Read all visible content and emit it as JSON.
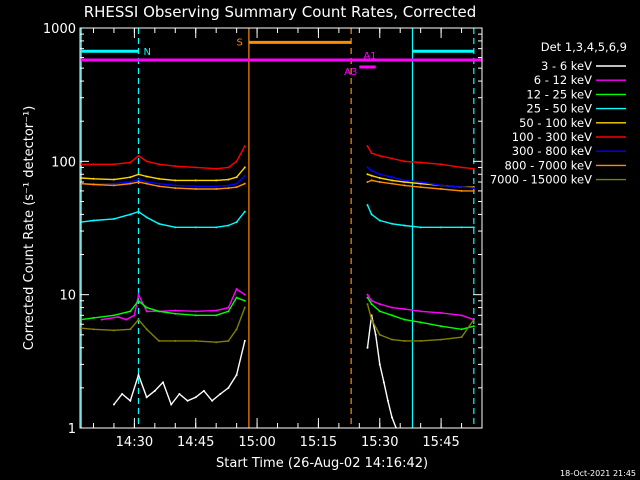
{
  "chart_data": {
    "type": "line",
    "title": "RHESSI Observing Summary Count Rates, Corrected",
    "xlabel": "Start Time (26-Aug-02 14:16:42)",
    "ylabel": "Corrected Count Rate (s⁻¹ detector⁻¹)",
    "y_scale": "log",
    "ylim": [
      1,
      1000
    ],
    "xlim": [
      "14:16:42",
      "15:55:00"
    ],
    "x_ticks": [
      "14:30",
      "14:45",
      "15:00",
      "15:15",
      "15:30",
      "15:45"
    ],
    "y_ticks": [
      "1",
      "10",
      "100",
      "1000"
    ],
    "legend_title": "Det 1,3,4,5,6,9",
    "legend_position": "right",
    "grid": false,
    "timestamp": "18-Oct-2021 21:45",
    "series": [
      {
        "name": "3 - 6 keV",
        "color": "#ffffff",
        "segments": [
          {
            "x": [
              "14:25:00",
              "14:27:00",
              "14:29:00",
              "14:31:00",
              "14:33:00",
              "14:35:00",
              "14:37:00",
              "14:39:00",
              "14:41:00",
              "14:43:00",
              "14:45:00",
              "14:47:00",
              "14:49:00",
              "14:51:00",
              "14:53:00",
              "14:55:00",
              "14:57:00"
            ],
            "y": [
              1.5,
              1.8,
              1.6,
              2.5,
              1.7,
              1.9,
              2.2,
              1.5,
              1.8,
              1.6,
              1.7,
              1.9,
              1.6,
              1.8,
              2.0,
              2.5,
              4.5
            ]
          },
          {
            "x": [
              "15:27:00",
              "15:28:00",
              "15:29:00",
              "15:30:00",
              "15:31:00",
              "15:32:00",
              "15:33:00",
              "15:34:00"
            ],
            "y": [
              4,
              7,
              5,
              3,
              2.2,
              1.6,
              1.2,
              1.0
            ]
          }
        ]
      },
      {
        "name": "6 - 12 keV",
        "color": "#ff00ff",
        "segments": [
          {
            "x": [
              "14:22:00",
              "14:26:00",
              "14:28:00",
              "14:30:00",
              "14:31:00",
              "14:33:00",
              "14:36:00",
              "14:40:00",
              "14:45:00",
              "14:50:00",
              "14:53:00",
              "14:55:00",
              "14:57:00"
            ],
            "y": [
              6.5,
              6.8,
              6.5,
              7,
              10,
              7.5,
              7.5,
              7.6,
              7.5,
              7.6,
              8,
              11,
              10
            ]
          },
          {
            "x": [
              "15:27:00",
              "15:28:00",
              "15:30:00",
              "15:33:00",
              "15:36:00",
              "15:40:00",
              "15:45:00",
              "15:50:00",
              "15:53:00"
            ],
            "y": [
              10,
              9,
              8.5,
              8,
              7.8,
              7.5,
              7.3,
              7,
              6.5
            ]
          }
        ]
      },
      {
        "name": "12 - 25 keV",
        "color": "#00ff00",
        "segments": [
          {
            "x": [
              "14:17:00",
              "14:20:00",
              "14:25:00",
              "14:29:00",
              "14:31:00",
              "14:33:00",
              "14:36:00",
              "14:40:00",
              "14:45:00",
              "14:50:00",
              "14:53:00",
              "14:55:00",
              "14:57:00"
            ],
            "y": [
              6.5,
              6.7,
              7,
              7.5,
              9,
              8,
              7.5,
              7.2,
              7,
              7,
              7.5,
              9.5,
              9
            ]
          },
          {
            "x": [
              "15:27:00",
              "15:28:00",
              "15:30:00",
              "15:33:00",
              "15:36:00",
              "15:40:00",
              "15:45:00",
              "15:50:00",
              "15:53:00"
            ],
            "y": [
              9.5,
              8.5,
              7.5,
              7,
              6.5,
              6.2,
              5.8,
              5.5,
              5.8
            ]
          }
        ]
      },
      {
        "name": "25 - 50 keV",
        "color": "#00ffff",
        "segments": [
          {
            "x": [
              "14:17:00",
              "14:20:00",
              "14:25:00",
              "14:29:00",
              "14:31:00",
              "14:33:00",
              "14:36:00",
              "14:40:00",
              "14:45:00",
              "14:50:00",
              "14:53:00",
              "14:55:00",
              "14:57:00"
            ],
            "y": [
              35,
              36,
              37,
              40,
              42,
              38,
              34,
              32,
              32,
              32,
              33,
              35,
              42
            ]
          },
          {
            "x": [
              "15:27:00",
              "15:28:00",
              "15:30:00",
              "15:33:00",
              "15:36:00",
              "15:40:00",
              "15:45:00",
              "15:50:00",
              "15:53:00"
            ],
            "y": [
              47,
              40,
              36,
              34,
              33,
              32,
              32,
              32,
              32
            ]
          }
        ]
      },
      {
        "name": "50 - 100 keV",
        "color": "#ffd700",
        "segments": [
          {
            "x": [
              "14:17:00",
              "14:20:00",
              "14:25:00",
              "14:29:00",
              "14:31:00",
              "14:33:00",
              "14:36:00",
              "14:40:00",
              "14:45:00",
              "14:50:00",
              "14:53:00",
              "14:55:00",
              "14:57:00"
            ],
            "y": [
              75,
              74,
              73,
              76,
              80,
              77,
              74,
              72,
              72,
              72,
              73,
              76,
              90
            ]
          },
          {
            "x": [
              "15:27:00",
              "15:28:00",
              "15:30:00",
              "15:33:00",
              "15:36:00",
              "15:40:00",
              "15:45:00",
              "15:50:00",
              "15:53:00"
            ],
            "y": [
              80,
              78,
              75,
              72,
              70,
              68,
              66,
              64,
              64
            ]
          }
        ]
      },
      {
        "name": "100 - 300 keV",
        "color": "#ff0000",
        "segments": [
          {
            "x": [
              "14:17:00",
              "14:20:00",
              "14:25:00",
              "14:29:00",
              "14:31:00",
              "14:33:00",
              "14:36:00",
              "14:40:00",
              "14:45:00",
              "14:50:00",
              "14:53:00",
              "14:55:00",
              "14:57:00"
            ],
            "y": [
              95,
              95,
              95,
              98,
              110,
              100,
              95,
              92,
              90,
              88,
              90,
              100,
              130
            ]
          },
          {
            "x": [
              "15:27:00",
              "15:28:00",
              "15:30:00",
              "15:33:00",
              "15:36:00",
              "15:40:00",
              "15:45:00",
              "15:50:00",
              "15:53:00"
            ],
            "y": [
              130,
              115,
              110,
              105,
              100,
              98,
              95,
              90,
              88
            ]
          }
        ]
      },
      {
        "name": "300 - 800 keV",
        "color": "#0000ff",
        "segments": [
          {
            "x": [
              "14:17:00",
              "14:20:00",
              "14:25:00",
              "14:29:00",
              "14:31:00",
              "14:33:00",
              "14:36:00",
              "14:40:00",
              "14:45:00",
              "14:50:00",
              "14:53:00",
              "14:55:00",
              "14:57:00"
            ],
            "y": [
              68,
              68,
              68,
              70,
              73,
              70,
              68,
              66,
              65,
              65,
              66,
              68,
              78
            ]
          },
          {
            "x": [
              "15:27:00",
              "15:28:00",
              "15:30:00",
              "15:33:00",
              "15:36:00",
              "15:40:00",
              "15:45:00",
              "15:50:00",
              "15:53:00"
            ],
            "y": [
              90,
              85,
              80,
              76,
              72,
              70,
              66,
              64,
              63
            ]
          }
        ]
      },
      {
        "name": "800 - 7000 keV",
        "color": "#ff8c00",
        "segments": [
          {
            "x": [
              "14:17:00",
              "14:20:00",
              "14:25:00",
              "14:29:00",
              "14:31:00",
              "14:33:00",
              "14:36:00",
              "14:40:00",
              "14:45:00",
              "14:50:00",
              "14:53:00",
              "14:55:00",
              "14:57:00"
            ],
            "y": [
              68,
              67,
              66,
              68,
              70,
              68,
              65,
              63,
              62,
              62,
              63,
              64,
              68
            ]
          },
          {
            "x": [
              "15:27:00",
              "15:28:00",
              "15:30:00",
              "15:33:00",
              "15:36:00",
              "15:40:00",
              "15:45:00",
              "15:50:00",
              "15:53:00"
            ],
            "y": [
              70,
              72,
              70,
              68,
              66,
              64,
              62,
              60,
              60
            ]
          }
        ]
      },
      {
        "name": "7000 - 15000 keV",
        "color": "#808000",
        "segments": [
          {
            "x": [
              "14:17:00",
              "14:20:00",
              "14:25:00",
              "14:29:00",
              "14:31:00",
              "14:33:00",
              "14:36:00",
              "14:40:00",
              "14:45:00",
              "14:50:00",
              "14:53:00",
              "14:55:00",
              "14:57:00"
            ],
            "y": [
              5.6,
              5.5,
              5.4,
              5.5,
              6.5,
              5.5,
              4.5,
              4.5,
              4.5,
              4.4,
              4.5,
              5.5,
              8
            ]
          },
          {
            "x": [
              "15:27:00",
              "15:28:00",
              "15:30:00",
              "15:33:00",
              "15:36:00",
              "15:40:00",
              "15:45:00",
              "15:50:00",
              "15:53:00"
            ],
            "y": [
              8.5,
              6.5,
              5,
              4.6,
              4.5,
              4.5,
              4.6,
              4.8,
              6.5
            ]
          }
        ]
      }
    ],
    "markers": {
      "vertical_lines": [
        {
          "x": "14:17:00",
          "color": "#00ffff",
          "style": "solid"
        },
        {
          "x": "14:31:00",
          "color": "#00ffff",
          "style": "dashed"
        },
        {
          "x": "14:58:00",
          "color": "#ff8c00",
          "style": "solid"
        },
        {
          "x": "15:23:00",
          "color": "#ff8c00",
          "style": "dashed"
        },
        {
          "x": "15:38:00",
          "color": "#00ffff",
          "style": "solid"
        },
        {
          "x": "15:53:00",
          "color": "#00ffff",
          "style": "dashed"
        }
      ],
      "intervals": [
        {
          "label": "N",
          "color": "#00ffff",
          "y": 670,
          "segments": [
            [
              "14:17:00",
              "14:31:00"
            ],
            [
              "15:38:00",
              "15:53:00"
            ]
          ]
        },
        {
          "label": "S",
          "color": "#ff8c00",
          "y": 780,
          "segments": [
            [
              "14:58:00",
              "15:23:00"
            ]
          ]
        },
        {
          "label": "A1",
          "color": "#ff00ff",
          "y": 575,
          "segments": [
            [
              "14:16:42",
              "15:55:00"
            ]
          ]
        },
        {
          "label": "A3",
          "color": "#ff00ff",
          "y": 510,
          "segments": [
            [
              "15:25:00",
              "15:29:00"
            ]
          ]
        }
      ]
    }
  }
}
